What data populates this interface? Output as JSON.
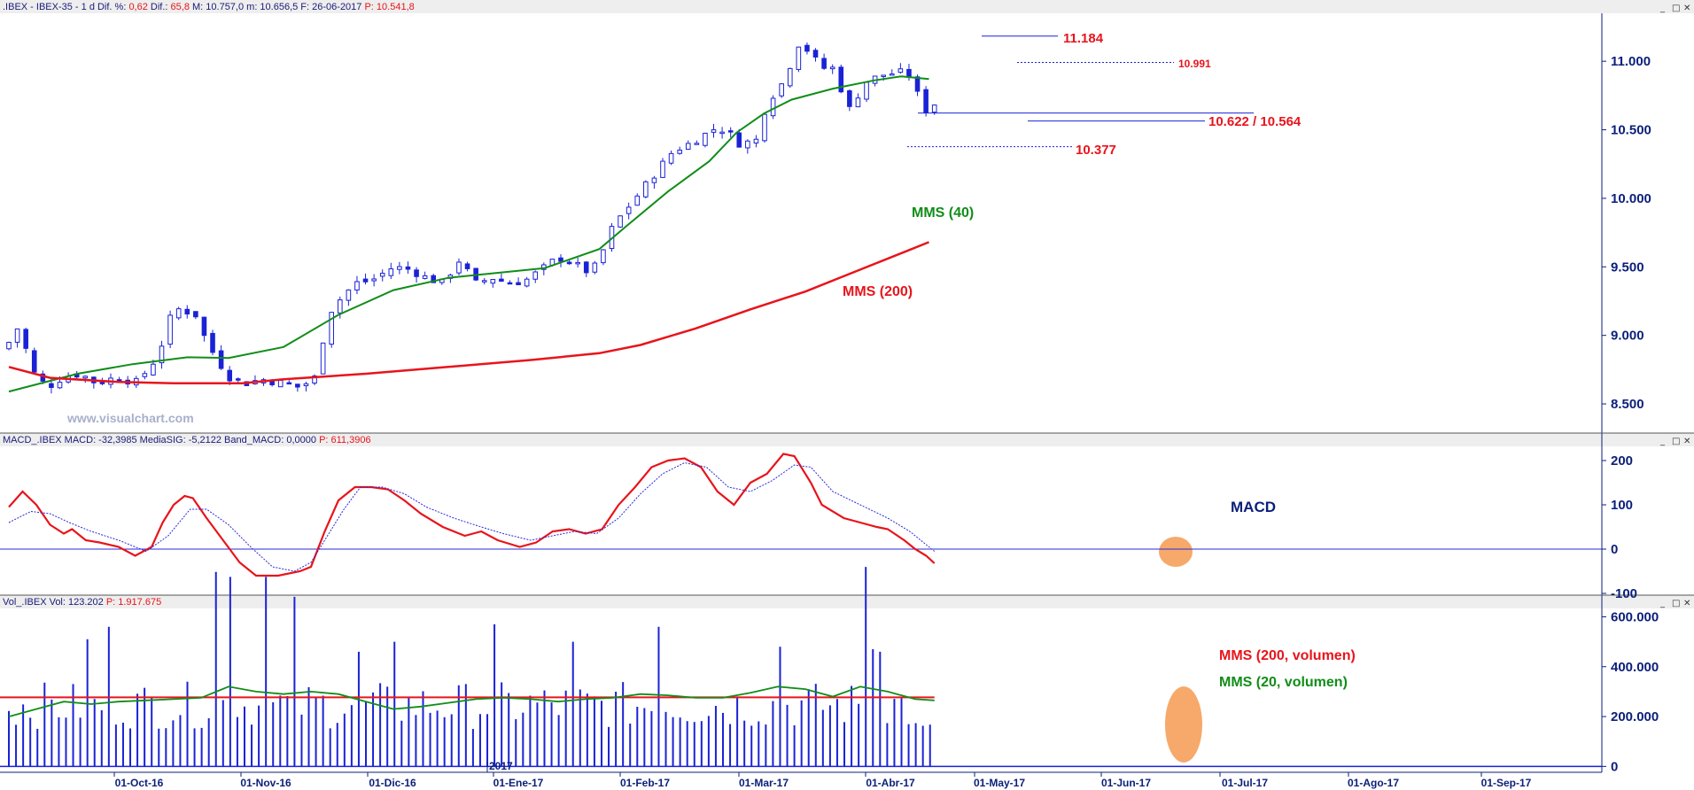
{
  "panels": {
    "price": {
      "header": [
        {
          "text": ".IBEX - IBEX-35 -  1 d  Dif. %: ",
          "color": "#1a1a7a"
        },
        {
          "text": "0,62",
          "color": "#e8141b"
        },
        {
          "text": "  Dif.: ",
          "color": "#1a1a7a"
        },
        {
          "text": "65,8",
          "color": "#e8141b"
        },
        {
          "text": "  M: 10.757,0  m: 10.656,5  F: 26-06-2017  ",
          "color": "#1a1a7a"
        },
        {
          "text": "P: 10.541,8",
          "color": "#e8141b"
        }
      ],
      "watermark": "www.visualchart.com"
    },
    "macd": {
      "header": [
        {
          "text": "MACD_.IBEX  MACD: -32,3985  MediaSIG: -5,2122  Band_MACD: 0,0000  ",
          "color": "#1a1a7a"
        },
        {
          "text": "P: 611,3906",
          "color": "#e8141b"
        }
      ]
    },
    "volume": {
      "header": [
        {
          "text": "Vol_.IBEX  Vol: 123.202  ",
          "color": "#1a1a7a"
        },
        {
          "text": "P: 1.917.675",
          "color": "#e8141b"
        }
      ]
    }
  },
  "window_buttons": [
    "_",
    "□",
    "✕"
  ],
  "annotations": {
    "high_label": "11.184",
    "resistance_label": "10.991",
    "support_label": "10.622 / 10.564",
    "gap_label": "10.377",
    "mms40_label": "MMS (40)",
    "mms200_label": "MMS (200)",
    "macd_label": "MACD",
    "vol_mms200_label": "MMS (200, volumen)",
    "vol_mms20_label": "MMS (20, volumen)"
  },
  "colors": {
    "candle": "#1a22d6",
    "mms40": "#118d18",
    "mms200": "#e8141b",
    "macd_line": "#e8141b",
    "signal_line": "#2a2ad8",
    "highlight": "#f5a05a",
    "axis_text": "#0b1f7a"
  },
  "chart_data": [
    {
      "type": "candlestick",
      "title": "IBEX-35 1 d",
      "ylim": [
        8300,
        11350
      ],
      "yticks": [
        "8.500",
        "9.000",
        "9.500",
        "10.000",
        "10.500",
        "11.000"
      ],
      "ytick_values": [
        8500,
        9000,
        9500,
        10000,
        10500,
        11000
      ],
      "overlays": [
        {
          "name": "MMS (40)",
          "points": [
            [
              0,
              8590
            ],
            [
              25,
              8720
            ],
            [
              45,
              8790
            ],
            [
              65,
              8840
            ],
            [
              80,
              8835
            ],
            [
              100,
              8915
            ],
            [
              120,
              9150
            ],
            [
              140,
              9330
            ],
            [
              160,
              9420
            ],
            [
              175,
              9450
            ],
            [
              195,
              9490
            ],
            [
              215,
              9630
            ],
            [
              225,
              9800
            ],
            [
              240,
              10050
            ],
            [
              255,
              10270
            ],
            [
              265,
              10480
            ],
            [
              275,
              10620
            ],
            [
              285,
              10720
            ],
            [
              300,
              10800
            ],
            [
              315,
              10860
            ],
            [
              325,
              10890
            ],
            [
              335,
              10870
            ]
          ]
        },
        {
          "name": "MMS (200)",
          "points": [
            [
              0,
              8770
            ],
            [
              15,
              8690
            ],
            [
              40,
              8660
            ],
            [
              60,
              8650
            ],
            [
              85,
              8650
            ],
            [
              100,
              8680
            ],
            [
              130,
              8720
            ],
            [
              160,
              8770
            ],
            [
              190,
              8820
            ],
            [
              215,
              8870
            ],
            [
              230,
              8930
            ],
            [
              250,
              9050
            ],
            [
              270,
              9190
            ],
            [
              290,
              9320
            ],
            [
              310,
              9480
            ],
            [
              325,
              9600
            ],
            [
              335,
              9680
            ]
          ]
        }
      ],
      "levels": [
        {
          "label": "11.184",
          "value": 11184
        },
        {
          "label": "10.991",
          "value": 10991
        },
        {
          "label": "10.622 / 10.564",
          "value": 10622
        },
        {
          "label": "10.622 / 10.564",
          "value": 10564
        },
        {
          "label": "10.377",
          "value": 10377
        }
      ]
    },
    {
      "type": "line",
      "title": "MACD_.IBEX",
      "ylim": [
        -100,
        230
      ],
      "yticks": [
        "200",
        "100",
        "0",
        "-100"
      ],
      "ytick_values": [
        200,
        100,
        0,
        -100
      ],
      "series": [
        {
          "name": "MACD",
          "points": [
            [
              0,
              95
            ],
            [
              5,
              130
            ],
            [
              10,
              100
            ],
            [
              15,
              55
            ],
            [
              20,
              35
            ],
            [
              23,
              45
            ],
            [
              28,
              20
            ],
            [
              33,
              15
            ],
            [
              40,
              5
            ],
            [
              46,
              -15
            ],
            [
              52,
              5
            ],
            [
              56,
              60
            ],
            [
              60,
              100
            ],
            [
              64,
              120
            ],
            [
              67,
              115
            ],
            [
              72,
              70
            ],
            [
              78,
              20
            ],
            [
              84,
              -30
            ],
            [
              90,
              -60
            ],
            [
              98,
              -60
            ],
            [
              106,
              -50
            ],
            [
              110,
              -40
            ],
            [
              115,
              40
            ],
            [
              120,
              110
            ],
            [
              126,
              140
            ],
            [
              132,
              140
            ],
            [
              138,
              135
            ],
            [
              144,
              110
            ],
            [
              150,
              80
            ],
            [
              158,
              50
            ],
            [
              166,
              30
            ],
            [
              172,
              40
            ],
            [
              178,
              20
            ],
            [
              186,
              5
            ],
            [
              192,
              15
            ],
            [
              198,
              40
            ],
            [
              204,
              45
            ],
            [
              210,
              35
            ],
            [
              216,
              45
            ],
            [
              222,
              100
            ],
            [
              228,
              140
            ],
            [
              234,
              185
            ],
            [
              240,
              200
            ],
            [
              246,
              205
            ],
            [
              252,
              185
            ],
            [
              258,
              130
            ],
            [
              264,
              100
            ],
            [
              270,
              150
            ],
            [
              276,
              170
            ],
            [
              282,
              215
            ],
            [
              286,
              210
            ],
            [
              292,
              150
            ],
            [
              296,
              100
            ],
            [
              304,
              70
            ],
            [
              310,
              60
            ],
            [
              316,
              50
            ],
            [
              320,
              45
            ],
            [
              326,
              20
            ],
            [
              330,
              0
            ],
            [
              334,
              -15
            ],
            [
              337,
              -32
            ]
          ]
        },
        {
          "name": "MediaSIG",
          "points": [
            [
              0,
              60
            ],
            [
              8,
              85
            ],
            [
              15,
              80
            ],
            [
              22,
              60
            ],
            [
              30,
              40
            ],
            [
              40,
              20
            ],
            [
              50,
              -5
            ],
            [
              58,
              30
            ],
            [
              66,
              90
            ],
            [
              72,
              90
            ],
            [
              80,
              55
            ],
            [
              88,
              5
            ],
            [
              96,
              -40
            ],
            [
              104,
              -50
            ],
            [
              110,
              -30
            ],
            [
              116,
              30
            ],
            [
              122,
              90
            ],
            [
              128,
              140
            ],
            [
              136,
              140
            ],
            [
              144,
              125
            ],
            [
              152,
              95
            ],
            [
              162,
              70
            ],
            [
              172,
              50
            ],
            [
              180,
              35
            ],
            [
              190,
              20
            ],
            [
              198,
              30
            ],
            [
              206,
              40
            ],
            [
              214,
              35
            ],
            [
              222,
              70
            ],
            [
              230,
              125
            ],
            [
              238,
              170
            ],
            [
              246,
              195
            ],
            [
              254,
              185
            ],
            [
              262,
              140
            ],
            [
              270,
              130
            ],
            [
              278,
              155
            ],
            [
              286,
              190
            ],
            [
              292,
              185
            ],
            [
              300,
              130
            ],
            [
              310,
              100
            ],
            [
              320,
              70
            ],
            [
              328,
              40
            ],
            [
              334,
              10
            ],
            [
              337,
              -5
            ]
          ]
        }
      ]
    },
    {
      "type": "bar",
      "title": "Vol_.IBEX",
      "ylim": [
        -20000,
        630000
      ],
      "yticks": [
        "600.000",
        "400.000",
        "200.000",
        "0"
      ],
      "ytick_values": [
        600000,
        400000,
        200000,
        0
      ],
      "overlays": [
        {
          "name": "MMS (200, volumen)",
          "value": 277000
        },
        {
          "name": "MMS (20, volumen)",
          "points": [
            [
              0,
              200000
            ],
            [
              10,
              230000
            ],
            [
              20,
              260000
            ],
            [
              30,
              250000
            ],
            [
              40,
              260000
            ],
            [
              50,
              265000
            ],
            [
              60,
              270000
            ],
            [
              70,
              275000
            ],
            [
              80,
              320000
            ],
            [
              90,
              300000
            ],
            [
              100,
              290000
            ],
            [
              110,
              300000
            ],
            [
              120,
              290000
            ],
            [
              130,
              260000
            ],
            [
              140,
              230000
            ],
            [
              150,
              240000
            ],
            [
              160,
              255000
            ],
            [
              170,
              270000
            ],
            [
              180,
              275000
            ],
            [
              190,
              270000
            ],
            [
              200,
              260000
            ],
            [
              210,
              270000
            ],
            [
              220,
              275000
            ],
            [
              230,
              290000
            ],
            [
              240,
              285000
            ],
            [
              250,
              275000
            ],
            [
              260,
              275000
            ],
            [
              270,
              295000
            ],
            [
              280,
              320000
            ],
            [
              290,
              310000
            ],
            [
              300,
              280000
            ],
            [
              310,
              320000
            ],
            [
              320,
              300000
            ],
            [
              330,
              270000
            ],
            [
              337,
              265000
            ]
          ]
        }
      ]
    }
  ],
  "x_axis": {
    "ticks": [
      "01-Oct-16",
      "01-Nov-16",
      "01-Dic-16",
      "01-Ene-17",
      "01-Feb-17",
      "01-Mar-17",
      "01-Abr-17",
      "01-May-17",
      "01-Jun-17",
      "01-Jul-17",
      "01-Ago-17",
      "01-Sep-17"
    ],
    "year_marker": "2017"
  }
}
